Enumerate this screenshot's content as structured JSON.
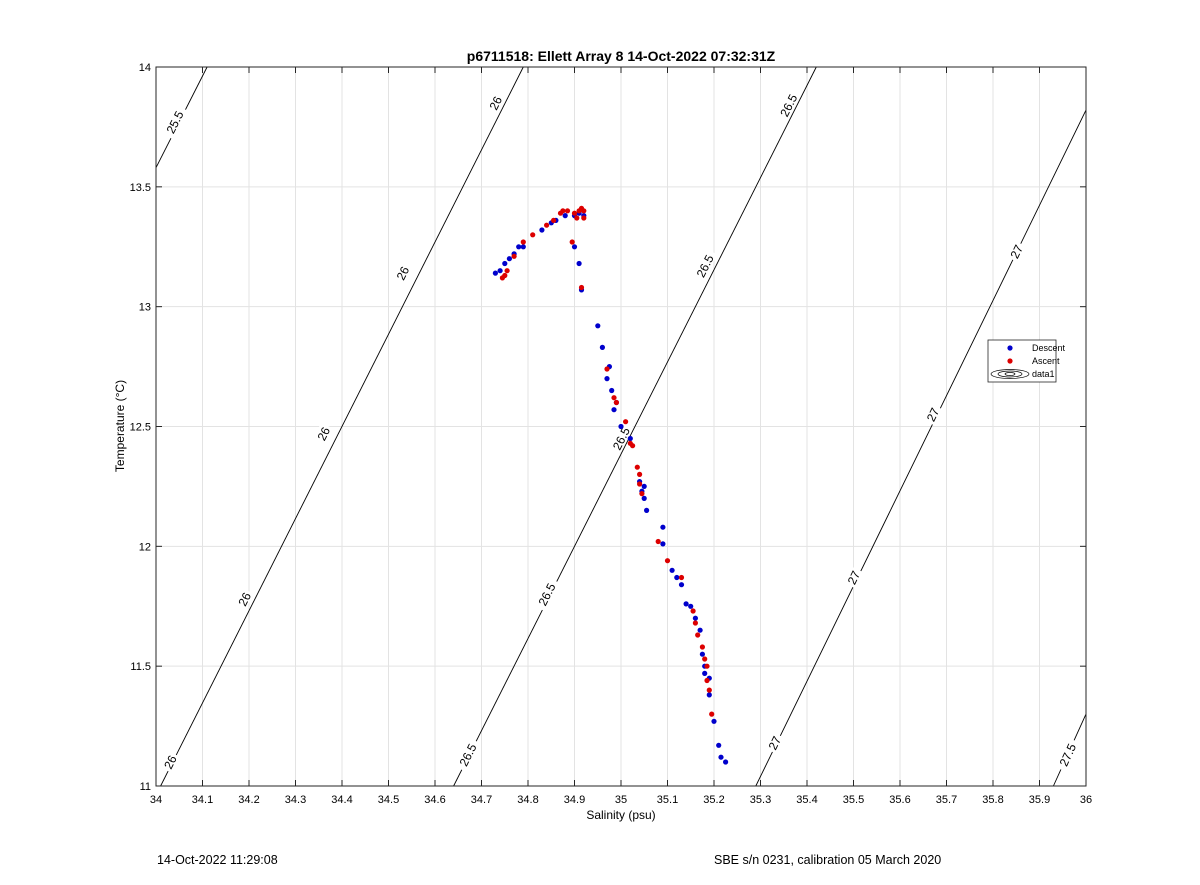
{
  "chart_data": {
    "type": "scatter",
    "title": "p6711518: Ellett Array 8 14-Oct-2022 07:32:31Z",
    "xlabel": "Salinity (psu)",
    "ylabel": "Temperature (°C)",
    "xlim": [
      34,
      36
    ],
    "ylim": [
      11,
      14
    ],
    "x_ticks": [
      "34",
      "34.1",
      "34.2",
      "34.3",
      "34.4",
      "34.5",
      "34.6",
      "34.7",
      "34.8",
      "34.9",
      "35",
      "35.1",
      "35.2",
      "35.3",
      "35.4",
      "35.5",
      "35.6",
      "35.7",
      "35.8",
      "35.9",
      "36"
    ],
    "y_ticks": [
      "11",
      "11.5",
      "12",
      "12.5",
      "13",
      "13.5",
      "14"
    ],
    "grid": true,
    "legend_position": "right",
    "legend": [
      "Descent",
      "Ascent",
      "data1"
    ],
    "contours": {
      "name": "data1",
      "color": "#000000",
      "levels": [
        {
          "label": "25.5",
          "points": [
            [
              34.0,
              13.58
            ],
            [
              34.11,
              14.0
            ]
          ]
        },
        {
          "label": "26",
          "points": [
            [
              34.01,
              11.0
            ],
            [
              34.79,
              14.0
            ]
          ]
        },
        {
          "label": "26.5",
          "points": [
            [
              34.64,
              11.0
            ],
            [
              35.42,
              14.0
            ]
          ]
        },
        {
          "label": "27",
          "points": [
            [
              35.29,
              11.0
            ],
            [
              36.0,
              13.82
            ]
          ]
        },
        {
          "label": "27.5",
          "points": [
            [
              35.93,
              11.0
            ],
            [
              36.0,
              11.3
            ]
          ]
        }
      ],
      "contour_labels": [
        {
          "text": "25.5",
          "s": 34.04,
          "t": 13.77
        },
        {
          "text": "26",
          "s": 34.03,
          "t": 11.1
        },
        {
          "text": "26",
          "s": 34.19,
          "t": 11.78
        },
        {
          "text": "26",
          "s": 34.36,
          "t": 12.47
        },
        {
          "text": "26",
          "s": 34.53,
          "t": 13.14
        },
        {
          "text": "26",
          "s": 34.73,
          "t": 13.85
        },
        {
          "text": "26.5",
          "s": 34.67,
          "t": 11.13
        },
        {
          "text": "26.5",
          "s": 34.84,
          "t": 11.8
        },
        {
          "text": "26.5",
          "s": 35.0,
          "t": 12.45
        },
        {
          "text": "26.5",
          "s": 35.18,
          "t": 13.17
        },
        {
          "text": "26.5",
          "s": 35.36,
          "t": 13.84
        },
        {
          "text": "27",
          "s": 35.33,
          "t": 11.18
        },
        {
          "text": "27",
          "s": 35.5,
          "t": 11.87
        },
        {
          "text": "27",
          "s": 35.67,
          "t": 12.55
        },
        {
          "text": "27",
          "s": 35.85,
          "t": 13.23
        },
        {
          "text": "27.5",
          "s": 35.96,
          "t": 11.13
        }
      ]
    },
    "series": [
      {
        "name": "Descent",
        "color": "#0000CC",
        "points": [
          [
            34.73,
            13.14
          ],
          [
            34.74,
            13.15
          ],
          [
            34.75,
            13.18
          ],
          [
            34.76,
            13.2
          ],
          [
            34.77,
            13.22
          ],
          [
            34.78,
            13.25
          ],
          [
            34.79,
            13.25
          ],
          [
            34.83,
            13.32
          ],
          [
            34.85,
            13.35
          ],
          [
            34.86,
            13.36
          ],
          [
            34.88,
            13.38
          ],
          [
            34.9,
            13.38
          ],
          [
            34.91,
            13.39
          ],
          [
            34.92,
            13.38
          ],
          [
            34.9,
            13.25
          ],
          [
            34.91,
            13.18
          ],
          [
            34.915,
            13.07
          ],
          [
            34.95,
            12.92
          ],
          [
            34.96,
            12.83
          ],
          [
            34.975,
            12.75
          ],
          [
            34.97,
            12.7
          ],
          [
            34.98,
            12.65
          ],
          [
            34.99,
            12.6
          ],
          [
            34.985,
            12.57
          ],
          [
            35.0,
            12.5
          ],
          [
            35.02,
            12.45
          ],
          [
            35.04,
            12.27
          ],
          [
            35.045,
            12.23
          ],
          [
            35.05,
            12.25
          ],
          [
            35.05,
            12.2
          ],
          [
            35.055,
            12.15
          ],
          [
            35.09,
            12.08
          ],
          [
            35.09,
            12.01
          ],
          [
            35.11,
            11.9
          ],
          [
            35.12,
            11.87
          ],
          [
            35.13,
            11.84
          ],
          [
            35.14,
            11.76
          ],
          [
            35.15,
            11.75
          ],
          [
            35.16,
            11.7
          ],
          [
            35.17,
            11.65
          ],
          [
            35.175,
            11.55
          ],
          [
            35.18,
            11.5
          ],
          [
            35.18,
            11.47
          ],
          [
            35.19,
            11.45
          ],
          [
            35.19,
            11.38
          ],
          [
            35.2,
            11.27
          ],
          [
            35.21,
            11.17
          ],
          [
            35.215,
            11.12
          ],
          [
            35.225,
            11.1
          ]
        ]
      },
      {
        "name": "Ascent",
        "color": "#DD0000",
        "points": [
          [
            34.745,
            13.12
          ],
          [
            34.75,
            13.13
          ],
          [
            34.755,
            13.15
          ],
          [
            34.77,
            13.21
          ],
          [
            34.79,
            13.27
          ],
          [
            34.81,
            13.3
          ],
          [
            34.84,
            13.34
          ],
          [
            34.855,
            13.36
          ],
          [
            34.87,
            13.39
          ],
          [
            34.875,
            13.4
          ],
          [
            34.885,
            13.4
          ],
          [
            34.9,
            13.39
          ],
          [
            34.905,
            13.37
          ],
          [
            34.91,
            13.4
          ],
          [
            34.915,
            13.41
          ],
          [
            34.92,
            13.37
          ],
          [
            34.92,
            13.4
          ],
          [
            34.895,
            13.27
          ],
          [
            34.915,
            13.08
          ],
          [
            34.97,
            12.74
          ],
          [
            34.985,
            12.62
          ],
          [
            34.99,
            12.6
          ],
          [
            35.01,
            12.52
          ],
          [
            35.02,
            12.43
          ],
          [
            35.025,
            12.42
          ],
          [
            35.035,
            12.33
          ],
          [
            35.04,
            12.3
          ],
          [
            35.04,
            12.26
          ],
          [
            35.045,
            12.22
          ],
          [
            35.08,
            12.02
          ],
          [
            35.1,
            11.94
          ],
          [
            35.13,
            11.87
          ],
          [
            35.155,
            11.73
          ],
          [
            35.16,
            11.68
          ],
          [
            35.165,
            11.63
          ],
          [
            35.175,
            11.58
          ],
          [
            35.18,
            11.53
          ],
          [
            35.185,
            11.5
          ],
          [
            35.185,
            11.44
          ],
          [
            35.19,
            11.4
          ],
          [
            35.195,
            11.3
          ]
        ]
      }
    ]
  },
  "footer": {
    "left": "14-Oct-2022 11:29:08",
    "right": "SBE s/n 0231, calibration 05 March 2020"
  }
}
